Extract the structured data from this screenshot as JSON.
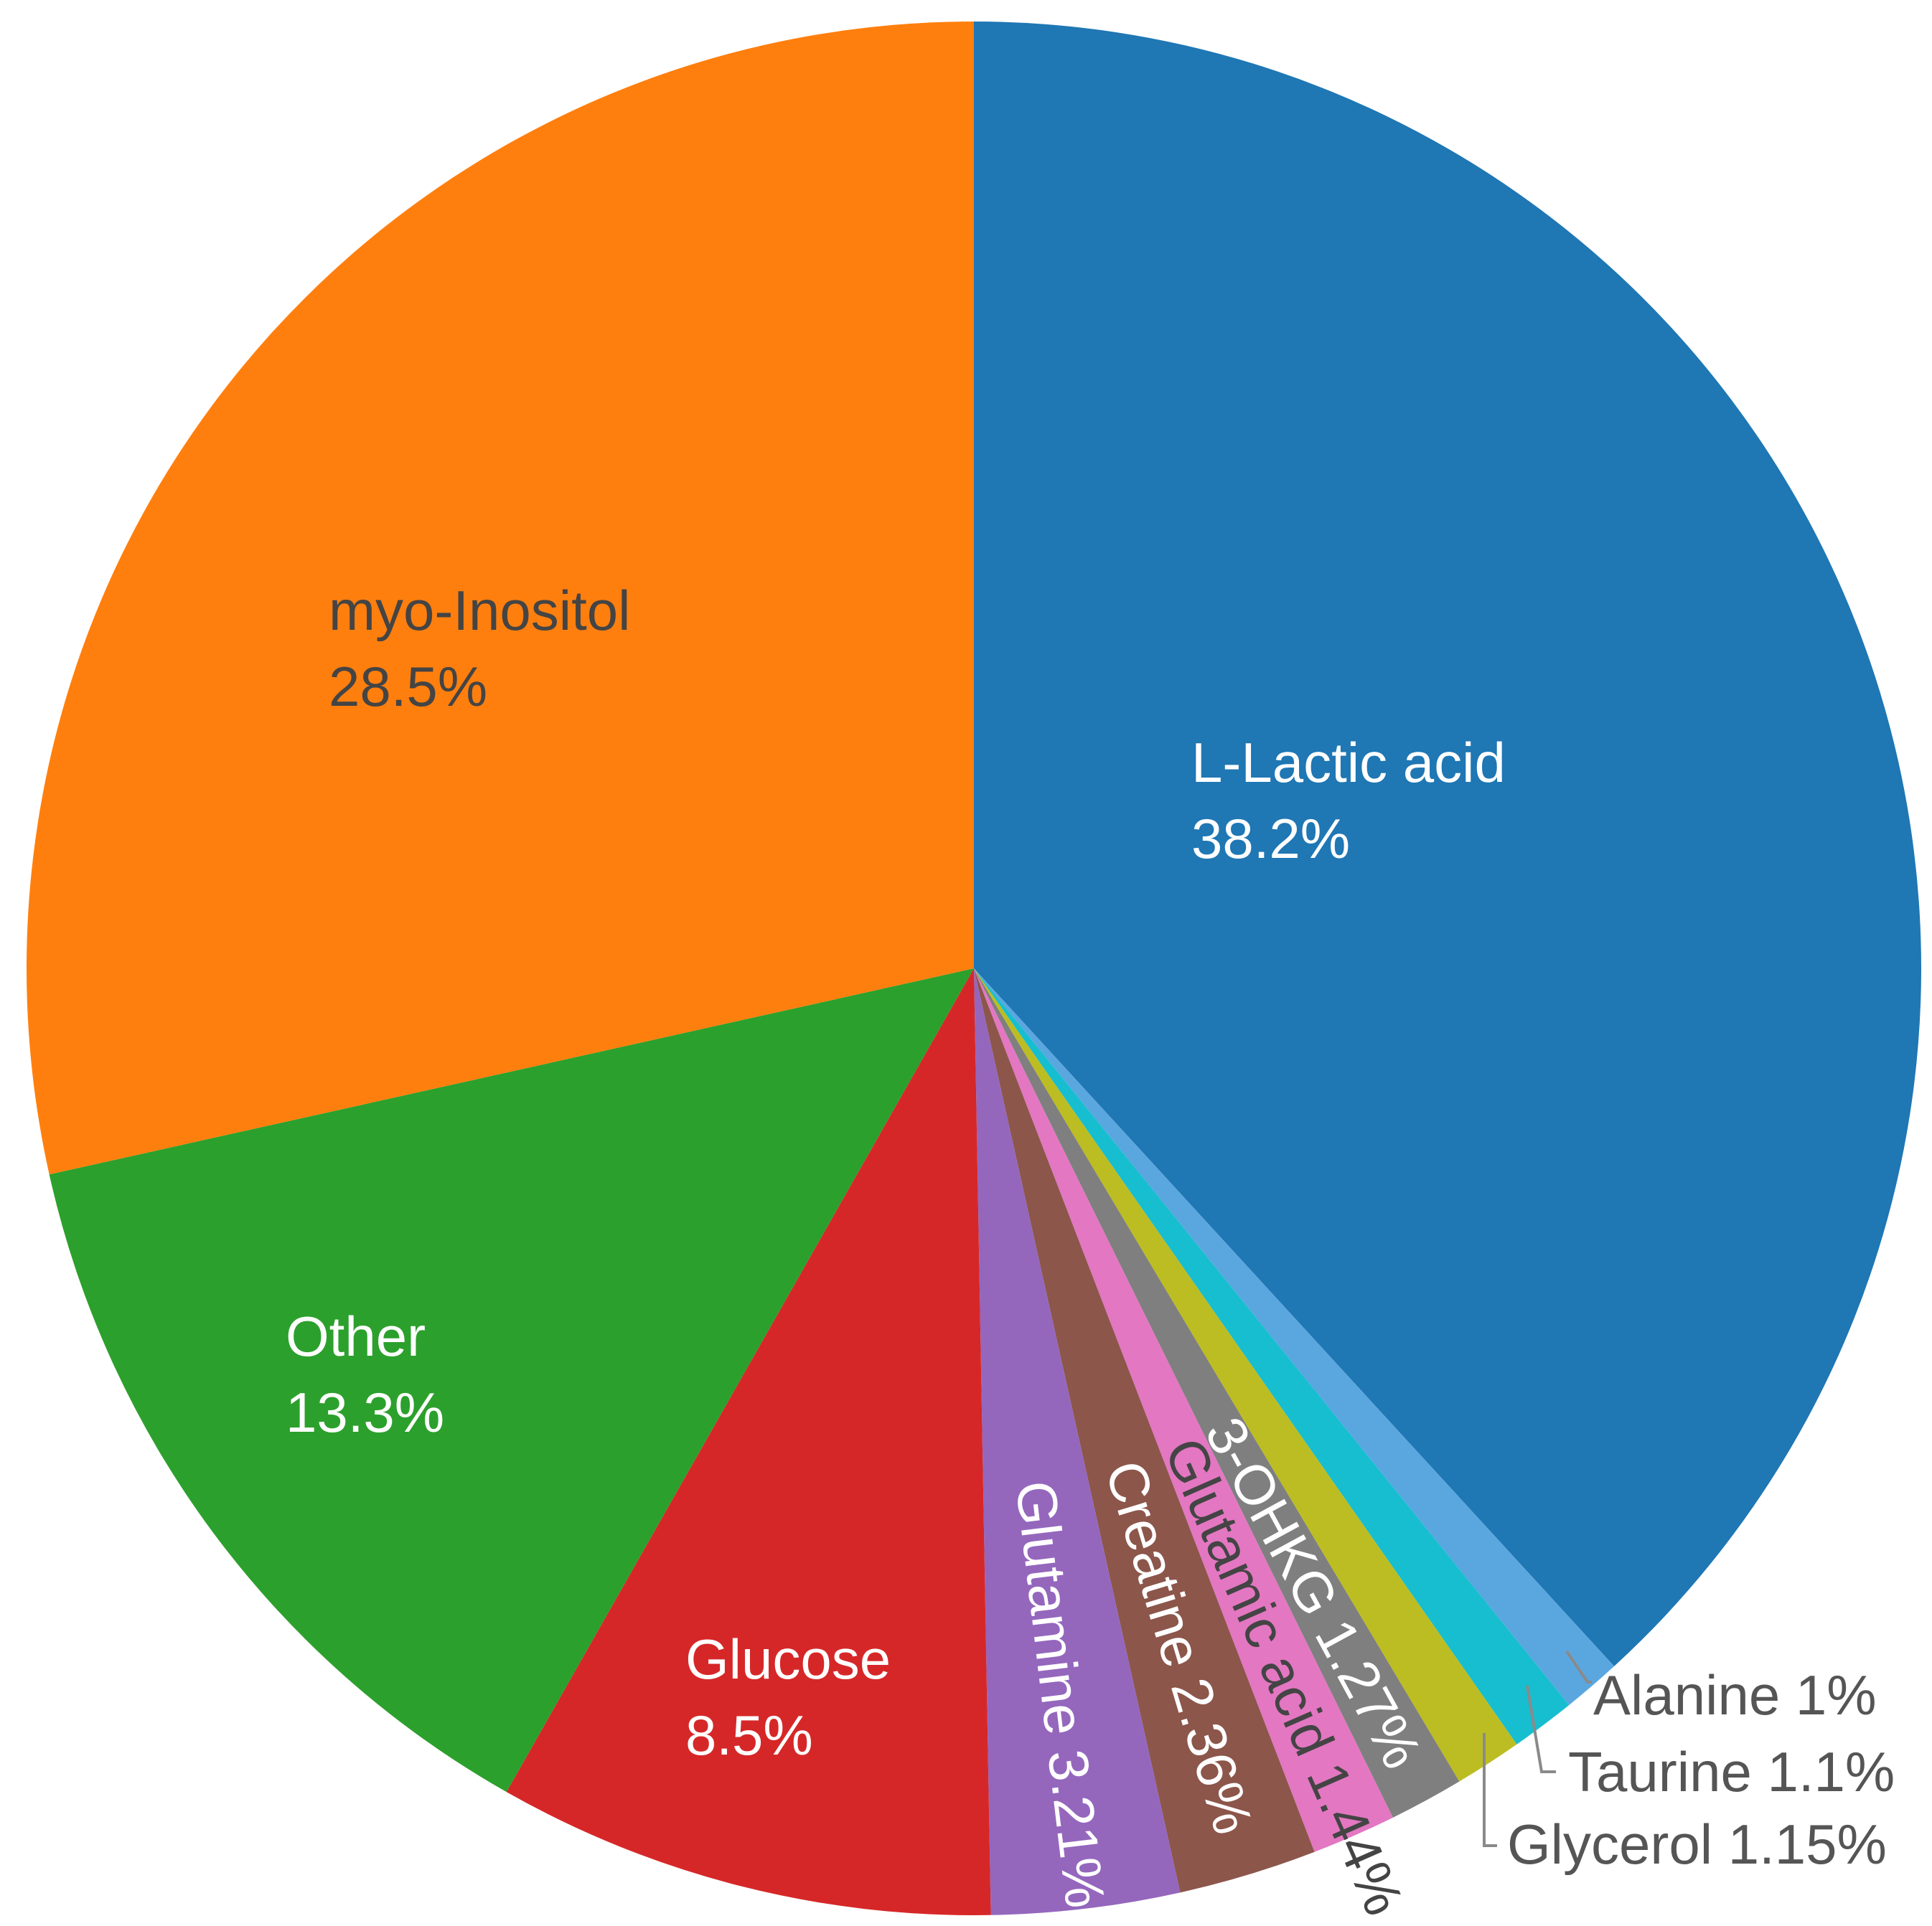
{
  "chart_data": {
    "type": "pie",
    "direction": "clockwise",
    "start": "12 o'clock",
    "legend": "none",
    "slices": [
      {
        "label": "L-Lactic acid",
        "value_text": "38.2%",
        "value": 38.2,
        "color": "#1f77b4",
        "label_color": "#ffffff"
      },
      {
        "label": "Alanine",
        "value_text": "1%",
        "value": 1.0,
        "color": "#5aa7e0",
        "label_color": "#555555"
      },
      {
        "label": "Taurine",
        "value_text": "1.1%",
        "value": 1.1,
        "color": "#17becf",
        "label_color": "#555555"
      },
      {
        "label": "Glycerol",
        "value_text": "1.15%",
        "value": 1.15,
        "color": "#bcbd22",
        "label_color": "#555555"
      },
      {
        "label": "3-OHKG",
        "value_text": "1.27%",
        "value": 1.27,
        "color": "#7f7f7f",
        "label_color": "#ffffff"
      },
      {
        "label": "Glutamic acid",
        "value_text": "1.44%",
        "value": 1.44,
        "color": "#e377c2",
        "label_color": "#444444"
      },
      {
        "label": "Creatine",
        "value_text": "2.36%",
        "value": 2.36,
        "color": "#8c564b",
        "label_color": "#ffffff"
      },
      {
        "label": "Glutamine",
        "value_text": "3.21%",
        "value": 3.21,
        "color": "#9467bd",
        "label_color": "#ffffff"
      },
      {
        "label": "Glucose",
        "value_text": "8.5%",
        "value": 8.5,
        "color": "#d62728",
        "label_color": "#ffffff"
      },
      {
        "label": "Other",
        "value_text": "13.3%",
        "value": 13.3,
        "color": "#2ca02c",
        "label_color": "#ffffff"
      },
      {
        "label": "myo-Inositol",
        "value_text": "28.5%",
        "value": 28.5,
        "color": "#ff7f0e",
        "label_color": "#444444"
      }
    ]
  }
}
